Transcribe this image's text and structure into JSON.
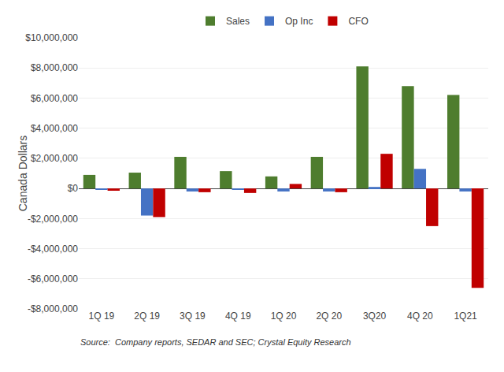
{
  "chart_data": {
    "type": "bar",
    "categories": [
      "1Q 19",
      "2Q 19",
      "3Q 19",
      "4Q 19",
      "1Q 20",
      "2Q 20",
      "3Q20",
      "4Q 20",
      "1Q21"
    ],
    "series": [
      {
        "name": "Sales",
        "color": "#4e7d2e",
        "values": [
          900000,
          1050000,
          2100000,
          1150000,
          800000,
          2100000,
          8100000,
          6800000,
          6200000
        ]
      },
      {
        "name": "Op Inc",
        "color": "#4472c4",
        "values": [
          -100000,
          -1800000,
          -200000,
          -100000,
          -200000,
          -200000,
          100000,
          1300000,
          -200000
        ]
      },
      {
        "name": "CFO",
        "color": "#c00000",
        "values": [
          -150000,
          -1900000,
          -250000,
          -300000,
          300000,
          -250000,
          2300000,
          -2500000,
          -6600000
        ]
      }
    ],
    "ylabel": "Canada Dollars",
    "ylim": [
      -8000000,
      10000000
    ],
    "yticks": [
      {
        "value": -8000000,
        "label": "-$8,000,000"
      },
      {
        "value": -6000000,
        "label": "-$6,000,000"
      },
      {
        "value": -4000000,
        "label": "-$4,000,000"
      },
      {
        "value": -2000000,
        "label": "-$2,000,000"
      },
      {
        "value": 0,
        "label": "$0"
      },
      {
        "value": 2000000,
        "label": "$2,000,000"
      },
      {
        "value": 4000000,
        "label": "$4,000,000"
      },
      {
        "value": 6000000,
        "label": "$6,000,000"
      },
      {
        "value": 8000000,
        "label": "$8,000,000"
      },
      {
        "value": 10000000,
        "label": "$10,000,000"
      }
    ],
    "annotations": [
      "Source:  Company reports, SEDAR and SEC; Crystal Equity Research"
    ],
    "grid": true,
    "legend": "top"
  }
}
